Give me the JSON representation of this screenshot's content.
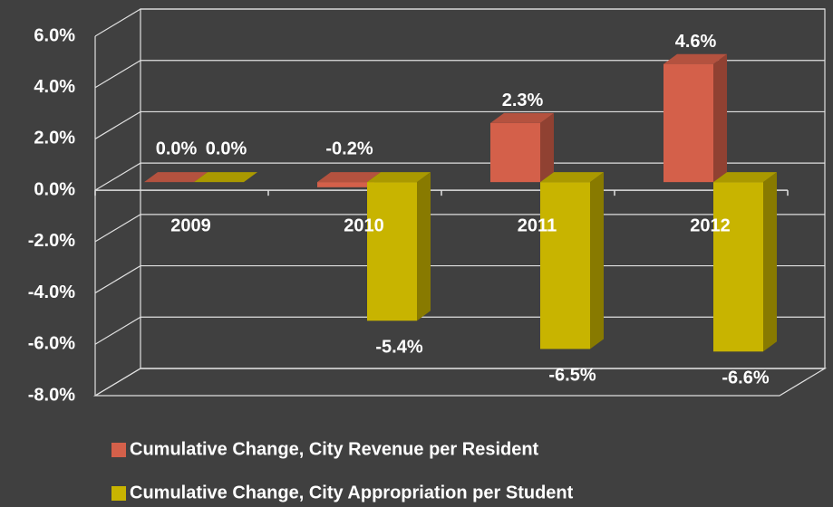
{
  "chart_data": {
    "type": "bar3d",
    "categories": [
      "2009",
      "2010",
      "2011",
      "2012"
    ],
    "series": [
      {
        "name": "Cumulative Change, City Revenue per Resident",
        "color": "#d4604a",
        "values": [
          0.0,
          -0.2,
          2.3,
          4.6
        ],
        "value_labels": [
          "0.0%",
          "-0.2%",
          "2.3%",
          "4.6%"
        ]
      },
      {
        "name": "Cumulative Change, City Appropriation per Student",
        "color": "#c8b400",
        "values": [
          0.0,
          -5.4,
          -6.5,
          -6.6
        ],
        "value_labels": [
          "0.0%",
          "-5.4%",
          "-6.5%",
          "-6.6%"
        ]
      }
    ],
    "ylim": [
      -8,
      6
    ],
    "yticks": [
      {
        "value": -8,
        "label": "-8.0%"
      },
      {
        "value": -6,
        "label": "-6.0%"
      },
      {
        "value": -4,
        "label": "-4.0%"
      },
      {
        "value": -2,
        "label": "-2.0%"
      },
      {
        "value": 0,
        "label": "0.0%"
      },
      {
        "value": 2,
        "label": "2.0%"
      },
      {
        "value": 4,
        "label": "4.0%"
      },
      {
        "value": 6,
        "label": "6.0%"
      }
    ],
    "grid": true
  }
}
